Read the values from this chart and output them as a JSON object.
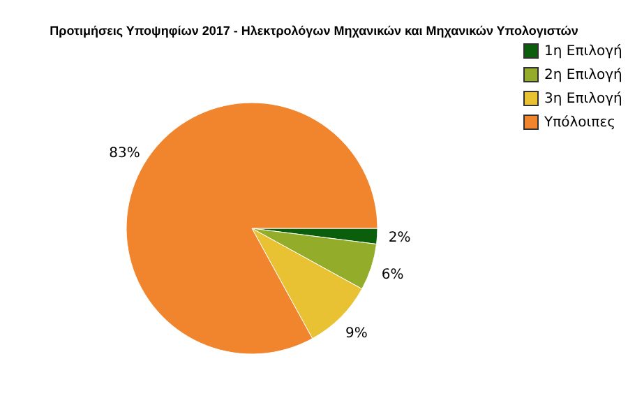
{
  "chart_data": {
    "type": "pie",
    "title": "Προτιμήσεις Υποψηφίων 2017 - Ηλεκτρολόγων Μηχανικών και Μηχανικών Υπολογιστών",
    "categories": [
      "1η Επιλογή",
      "2η Επιλογή",
      "3η Επιλογή",
      "Υπόλοιπες"
    ],
    "values": [
      2,
      6,
      9,
      83
    ],
    "colors": [
      "#0b5e0b",
      "#93ac2a",
      "#e8c232",
      "#f0852d"
    ],
    "value_labels": [
      "2%",
      "6%",
      "9%",
      "83%"
    ],
    "legend": "right"
  }
}
